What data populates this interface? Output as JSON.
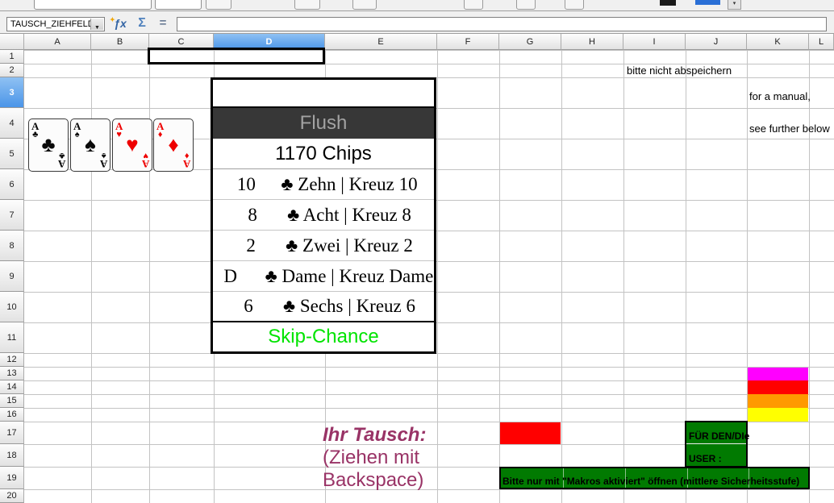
{
  "toolbar": {
    "name_box_value": "TAUSCH_ZIEHFELD",
    "function_wizard_label": "ƒx",
    "sum_label": "Σ",
    "equals_label": "=",
    "formula_input_value": ""
  },
  "grid": {
    "columns": [
      "A",
      "B",
      "C",
      "D",
      "E",
      "F",
      "G",
      "H",
      "I",
      "J",
      "K",
      "L"
    ],
    "rows": [
      "1",
      "2",
      "3",
      "4",
      "5",
      "6",
      "7",
      "8",
      "9",
      "10",
      "11",
      "12",
      "13",
      "14",
      "15",
      "16",
      "17",
      "18",
      "19",
      "20"
    ],
    "selected_column": "D",
    "selected_row": "3"
  },
  "cards": [
    {
      "rank": "A",
      "suit": "♣",
      "color": "#0a0a0a"
    },
    {
      "rank": "A",
      "suit": "♠",
      "color": "#0a0a0a"
    },
    {
      "rank": "A",
      "suit": "♥",
      "color": "#ee0000"
    },
    {
      "rank": "A",
      "suit": "♦",
      "color": "#ee0000"
    }
  ],
  "panel": {
    "title": "Flush",
    "chips": "1170 Chips",
    "cards": [
      {
        "rank": "10",
        "label": "♣ Zehn | Kreuz 10"
      },
      {
        "rank": "8",
        "label": "♣ Acht | Kreuz 8"
      },
      {
        "rank": "2",
        "label": "♣ Zwei | Kreuz 2"
      },
      {
        "rank": "D",
        "label": "♣ Dame | Kreuz Dame"
      },
      {
        "rank": "6",
        "label": "♣ Sechs | Kreuz 6"
      }
    ],
    "footer": "Skip-Chance"
  },
  "notes": {
    "save_warning": "bitte nicht abspeichern",
    "manual_line1": "for a manual,",
    "manual_line2": "see further below"
  },
  "tausch": {
    "title": "Ihr Tausch:",
    "hint_line1": "(Ziehen mit",
    "hint_line2": "Backspace)"
  },
  "user_box": {
    "line1": "FÜR DEN/DIe",
    "line2": "USER :"
  },
  "macro_banner": "Bitte nur mit \"Makros aktiviert\" öffnen (mittlere Sicherheitsstufe)",
  "colors": {
    "magenta_cell": "#ff00ff",
    "red_cell": "#ff0000",
    "orange_cell": "#ff9900",
    "yellow_cell": "#ffff00",
    "green_cell": "#017a01",
    "red_swap_cell": "#ff0000",
    "panel_header_bg": "#373737",
    "panel_header_text": "#a2a2a2",
    "skip_chance_green": "#00e400",
    "tausch_purple": "#993366"
  }
}
